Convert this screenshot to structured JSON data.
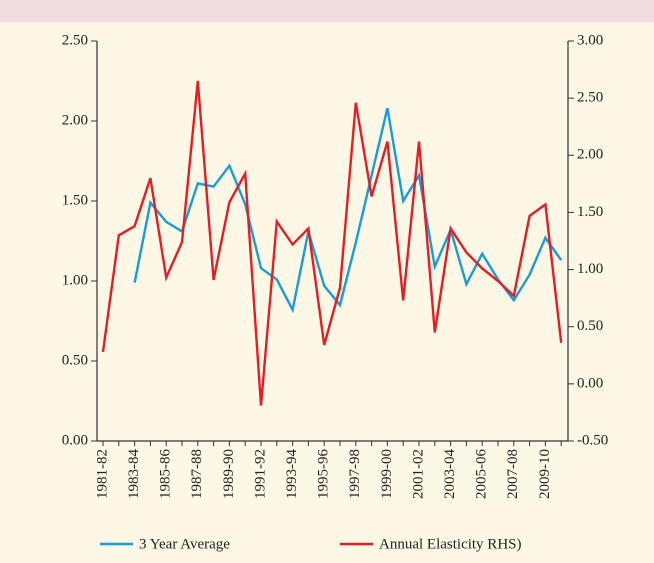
{
  "chart_data": {
    "type": "line",
    "categories": [
      "1981-82",
      null,
      "1983-84",
      null,
      "1985-86",
      null,
      "1987-88",
      null,
      "1989-90",
      null,
      "1991-92",
      null,
      "1993-94",
      null,
      "1995-96",
      null,
      "1997-98",
      null,
      "1999-00",
      null,
      "2001-02",
      null,
      "2003-04",
      null,
      "2005-06",
      null,
      "2007-08",
      null,
      "2009-10",
      null
    ],
    "series": [
      {
        "name": "3 Year Average",
        "color": "#1b9bd7",
        "values": [
          null,
          null,
          0.99,
          1.49,
          1.37,
          1.31,
          1.61,
          1.59,
          1.72,
          1.48,
          1.08,
          1.01,
          0.82,
          1.31,
          0.97,
          0.85,
          1.24,
          1.66,
          2.08,
          1.5,
          1.66,
          1.09,
          1.32,
          0.98,
          1.17,
          1.01,
          0.88,
          1.04,
          1.27,
          1.13
        ]
      },
      {
        "name": "Annual Elasticity RHS)",
        "color": "#e31e25",
        "axis": "y2",
        "values": [
          0.28,
          1.3,
          1.38,
          1.8,
          0.93,
          1.24,
          2.65,
          0.91,
          1.59,
          1.84,
          -0.19,
          1.42,
          1.22,
          1.36,
          0.34,
          0.84,
          2.46,
          1.64,
          2.12,
          0.73,
          2.12,
          0.45,
          1.36,
          1.15,
          1.01,
          0.9,
          0.77,
          1.47,
          1.57,
          0.36
        ]
      }
    ],
    "ylim": [
      0,
      2.5
    ],
    "yticks": [
      {
        "value": 0,
        "label": "0.00"
      },
      {
        "value": 0.5,
        "label": "0.50"
      },
      {
        "value": 1,
        "label": "1.00"
      },
      {
        "value": 1.5,
        "label": "1.50"
      },
      {
        "value": 2,
        "label": "2.00"
      },
      {
        "value": 2.5,
        "label": "2.50"
      }
    ],
    "y2lim": [
      -0.5,
      3
    ],
    "y2ticks": [
      {
        "value": -0.5,
        "label": "-0.50"
      },
      {
        "value": 0,
        "label": "0.00"
      },
      {
        "value": 0.5,
        "label": "0.50"
      },
      {
        "value": 1,
        "label": "1.00"
      },
      {
        "value": 1.5,
        "label": "1.50"
      },
      {
        "value": 2,
        "label": "2.00"
      },
      {
        "value": 2.5,
        "label": "2.50"
      },
      {
        "value": 3,
        "label": "3.00"
      }
    ],
    "grid": false,
    "legend": "bottom"
  }
}
